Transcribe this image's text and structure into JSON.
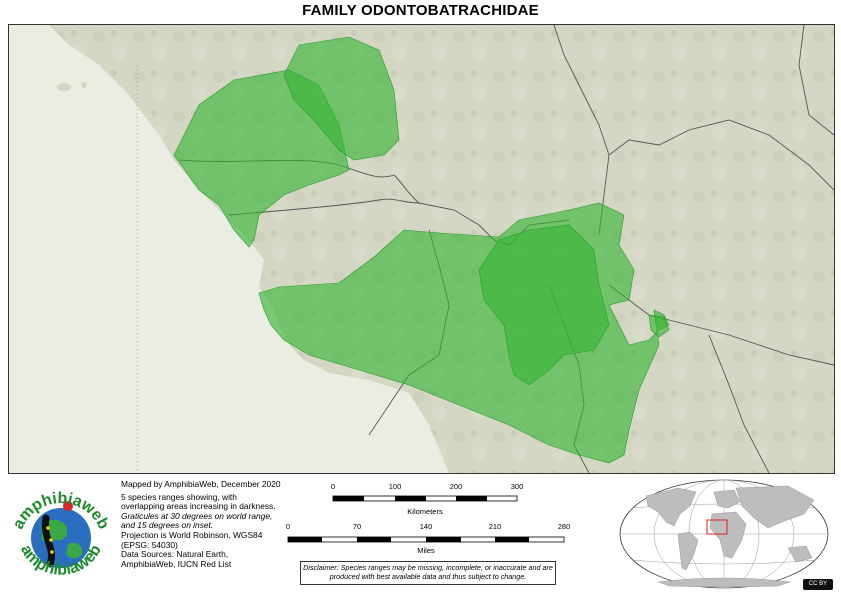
{
  "title": "FAMILY ODONTOBATRACHIDAE",
  "colors": {
    "land": "#d6d8c6",
    "ocean": "#eceee4",
    "range": "#33b533",
    "border": "#555555",
    "inset_ocean": "#ffffff",
    "inset_land": "#bdbdbd",
    "inset_highlight": "#e0201a"
  },
  "credits": {
    "mapped_by": "Mapped by AmphibiaWeb, December 2020",
    "species_note": "5 species ranges showing, with overlapping areas increasing in darkness.",
    "graticules": "Graticules at 30 degrees on world range, and 15 degrees on inset.",
    "projection": "Projection is World Robinson, WGS84 (EPSG: 54030)",
    "sources": "Data Sources: Natural Earth, AmphibiaWeb, IUCN Red List"
  },
  "scale_km": {
    "ticks": [
      "0",
      "100",
      "200",
      "300"
    ],
    "unit": "Kilometers"
  },
  "scale_mi": {
    "ticks": [
      "0",
      "70",
      "140",
      "210",
      "280"
    ],
    "unit": "Miles"
  },
  "disclaimer": "Disclaimer: Species ranges may be missing, incomplete, or inaccurate and are produced with best available data and thus subject to change.",
  "logo": {
    "top_text": "amphibiaweb",
    "bottom_text": "amphibiaweb",
    "icon": "salamander-globe-logo"
  },
  "cc_badge": "CC BY"
}
